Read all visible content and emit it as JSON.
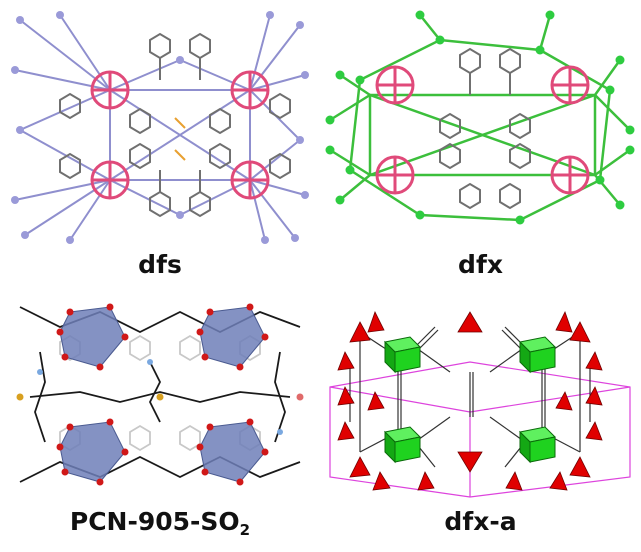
{
  "panels": [
    {
      "id": "dfs",
      "label": "dfs",
      "sub": ""
    },
    {
      "id": "dfx",
      "label": "dfx",
      "sub": ""
    },
    {
      "id": "pcn",
      "label": "PCN-905-SO",
      "sub": "2"
    },
    {
      "id": "dfxa",
      "label": "dfx-a",
      "sub": ""
    }
  ],
  "colors": {
    "lavender_net": "#8f8fce",
    "lavender_node": "#9a9ad8",
    "green_net": "#3cbf3c",
    "green_node": "#2ecc40",
    "metal_cluster": "#e04a7a",
    "ligand_gray": "#707070",
    "polyhedron_blue": "#6f7fb8",
    "oxygen_red": "#d01818",
    "carbon_black": "#1a1a1a",
    "topo_green": "#1fd21f",
    "topo_red": "#e00000",
    "cell_magenta": "#dd44dd"
  }
}
